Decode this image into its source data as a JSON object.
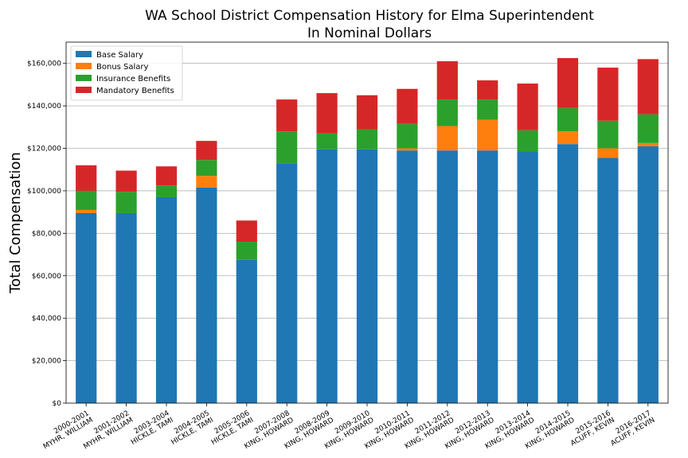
{
  "chart_data": {
    "type": "bar",
    "stacked": true,
    "title": "WA School District Compensation History for Elma Superintendent",
    "subtitle": "In Nominal Dollars",
    "xlabel": "",
    "ylabel": "Total Compensation",
    "ylim": [
      0,
      170000
    ],
    "yticks": [
      0,
      20000,
      40000,
      60000,
      80000,
      100000,
      120000,
      140000,
      160000
    ],
    "ytick_labels": [
      "$0",
      "$20,000",
      "$40,000",
      "$60,000",
      "$80,000",
      "$100,000",
      "$120,000",
      "$140,000",
      "$160,000"
    ],
    "grid": "horizontal",
    "legend_position": "top-left",
    "categories": [
      {
        "year": "2000-2001",
        "name": "MYHR, WILLIAM"
      },
      {
        "year": "2001-2002",
        "name": "MYHR, WILLIAM"
      },
      {
        "year": "2003-2004",
        "name": "HICKLE, TAMI"
      },
      {
        "year": "2004-2005",
        "name": "HICKLE, TAMI"
      },
      {
        "year": "2005-2006",
        "name": "HICKLE, TAMI"
      },
      {
        "year": "2007-2008",
        "name": "KING, HOWARD"
      },
      {
        "year": "2008-2009",
        "name": "KING, HOWARD"
      },
      {
        "year": "2009-2010",
        "name": "KING, HOWARD"
      },
      {
        "year": "2010-2011",
        "name": "KING, HOWARD"
      },
      {
        "year": "2011-2012",
        "name": "KING, HOWARD"
      },
      {
        "year": "2012-2013",
        "name": "KING, HOWARD"
      },
      {
        "year": "2013-2014",
        "name": "KING, HOWARD"
      },
      {
        "year": "2014-2015",
        "name": "KING, HOWARD"
      },
      {
        "year": "2015-2016",
        "name": "ACUFF, KEVIN"
      },
      {
        "year": "2016-2017",
        "name": "ACUFF, KEVIN"
      }
    ],
    "series": [
      {
        "name": "Base Salary",
        "color": "#1f77b4",
        "values": [
          89500,
          89500,
          97000,
          101500,
          67500,
          113000,
          119500,
          119500,
          119000,
          119000,
          119000,
          118500,
          122000,
          115500,
          121000
        ]
      },
      {
        "name": "Bonus Salary",
        "color": "#ff7f0e",
        "values": [
          1500,
          0,
          0,
          5500,
          0,
          0,
          0,
          0,
          1000,
          11500,
          14500,
          0,
          6000,
          4500,
          1500
        ]
      },
      {
        "name": "Insurance Benefits",
        "color": "#2ca02c",
        "values": [
          9000,
          10000,
          5500,
          7500,
          8500,
          15000,
          7500,
          9500,
          11500,
          12500,
          9500,
          10000,
          11000,
          13000,
          13500
        ]
      },
      {
        "name": "Mandatory Benefits",
        "color": "#d62728",
        "values": [
          12000,
          10000,
          9000,
          9000,
          10000,
          15000,
          19000,
          16000,
          16500,
          18000,
          9000,
          22000,
          23500,
          25000,
          26000
        ]
      }
    ]
  }
}
